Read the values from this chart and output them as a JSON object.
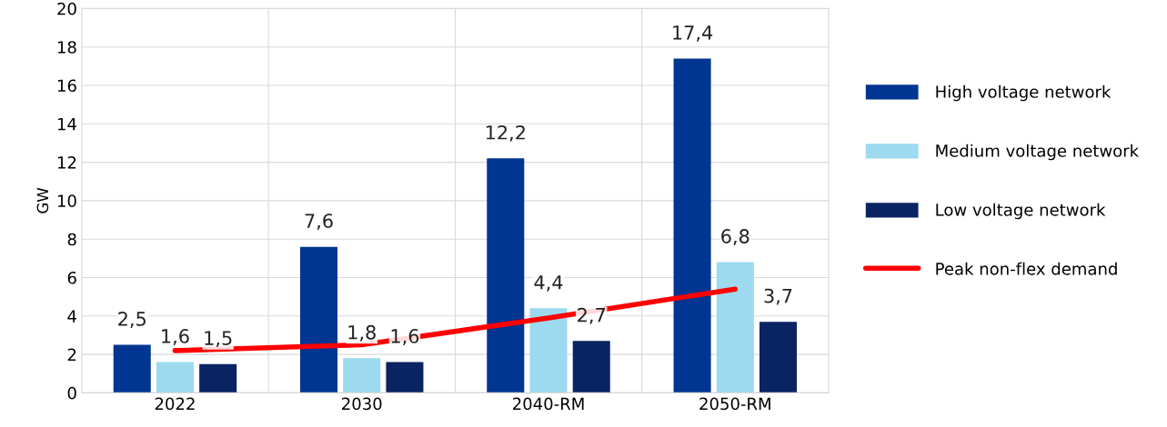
{
  "chart_data": {
    "type": "bar",
    "ylabel": "GW",
    "categories": [
      "2022",
      "2030",
      "2040-RM",
      "2050-RM"
    ],
    "ylim": [
      0,
      20
    ],
    "yticks": [
      0,
      2,
      4,
      6,
      8,
      10,
      12,
      14,
      16,
      18,
      20
    ],
    "grid": true,
    "legend": "right",
    "series": [
      {
        "name": "High voltage network",
        "color": "#003591",
        "values": [
          2.5,
          7.6,
          12.2,
          17.4
        ],
        "value_labels": [
          "2,5",
          "7,6",
          "12,2",
          "17,4"
        ]
      },
      {
        "name": "Medium voltage network",
        "color": "#9dd9ef",
        "values": [
          1.6,
          1.8,
          4.4,
          6.8
        ],
        "value_labels": [
          "1,6",
          "1,8",
          "4,4",
          "6,8"
        ]
      },
      {
        "name": "Low voltage network",
        "color": "#0a2463",
        "values": [
          1.5,
          1.6,
          2.7,
          3.7
        ],
        "value_labels": [
          "1,5",
          "1,6",
          "2,7",
          "3,7"
        ]
      },
      {
        "name": "Peak non-flex demand",
        "type": "line",
        "color": "#ff0000",
        "values": [
          2.2,
          2.5,
          3.9,
          5.4
        ],
        "marker": "none",
        "line_style": "solid"
      }
    ]
  }
}
